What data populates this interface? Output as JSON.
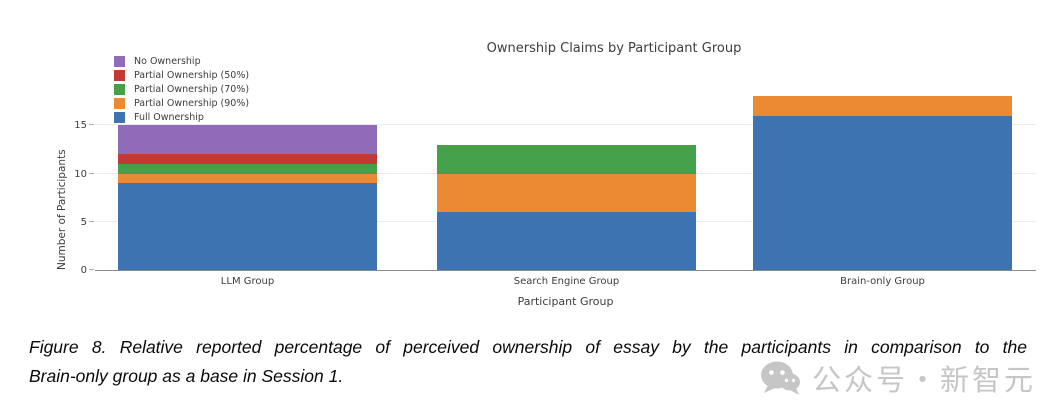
{
  "chart_data": {
    "type": "bar",
    "stacked": true,
    "title": "Ownership Claims by Participant Group",
    "xlabel": "Participant Group",
    "ylabel": "Number of Participants",
    "categories": [
      "LLM Group",
      "Search Engine Group",
      "Brain-only Group"
    ],
    "series": [
      {
        "name": "Full Ownership",
        "color": "#3c73b0",
        "values": [
          9,
          6,
          16
        ]
      },
      {
        "name": "Partial Ownership (90%)",
        "color": "#eb8a33",
        "values": [
          1,
          4,
          2
        ]
      },
      {
        "name": "Partial Ownership (70%)",
        "color": "#44a049",
        "values": [
          1,
          3,
          0
        ]
      },
      {
        "name": "Partial Ownership (50%)",
        "color": "#c23a34",
        "values": [
          1,
          0,
          0
        ]
      },
      {
        "name": "No Ownership",
        "color": "#8f6bb8",
        "values": [
          3,
          0,
          0
        ]
      }
    ],
    "totals": [
      15,
      13,
      18
    ],
    "yticks": [
      0,
      5,
      10,
      15
    ],
    "ylim": [
      0,
      22.3
    ],
    "grid": true,
    "legend_position": "top-left",
    "legend_order_top_to_bottom": [
      "No Ownership",
      "Partial Ownership (50%)",
      "Partial Ownership (70%)",
      "Partial Ownership (90%)",
      "Full Ownership"
    ]
  },
  "caption": {
    "line1": "Figure 8. Relative reported percentage of perceived ownership of essay by the participants in comparison to the",
    "line2": "Brain-only group as a base in Session 1."
  },
  "watermark": {
    "icon": "wechat-icon",
    "text": "公众号・新智元",
    "color": "#c6c6c6"
  }
}
